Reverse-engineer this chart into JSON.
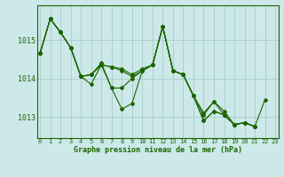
{
  "title": "Graphe pression niveau de la mer (hPa)",
  "bg_color": "#cce8e8",
  "grid_color": "#aacccc",
  "line_color": "#1a6600",
  "marker_color": "#1a6600",
  "x_ticks": [
    0,
    1,
    2,
    3,
    4,
    5,
    6,
    7,
    8,
    9,
    10,
    11,
    12,
    13,
    14,
    15,
    16,
    17,
    18,
    19,
    20,
    21,
    22,
    23
  ],
  "y_ticks": [
    1013,
    1014,
    1015
  ],
  "ylim": [
    1012.45,
    1015.9
  ],
  "xlim": [
    -0.3,
    23.3
  ],
  "series": [
    {
      "x": [
        0,
        1,
        2,
        3,
        4,
        5,
        6,
        7,
        8,
        9,
        10,
        11,
        12,
        13,
        14,
        15,
        16,
        17,
        18,
        19,
        20,
        21,
        22
      ],
      "y": [
        1014.65,
        1015.55,
        1015.2,
        1014.8,
        1014.05,
        1013.85,
        1014.35,
        1013.75,
        1013.2,
        1013.35,
        1014.2,
        1014.35,
        1015.35,
        1014.2,
        1014.1,
        1013.55,
        1012.9,
        1013.15,
        1013.05,
        1012.8,
        1012.85,
        1012.75,
        1013.45
      ]
    },
    {
      "x": [
        0,
        1,
        2,
        3,
        4,
        5,
        6,
        7,
        8,
        9,
        10,
        11,
        12,
        13,
        14,
        15,
        16,
        17,
        18,
        19,
        20,
        21
      ],
      "y": [
        1014.65,
        1015.55,
        1015.2,
        1014.8,
        1014.05,
        1014.1,
        1014.4,
        1013.75,
        1013.75,
        1014.0,
        1014.2,
        1014.35,
        1015.35,
        1014.2,
        1014.1,
        1013.55,
        1012.9,
        1013.15,
        1013.05,
        1012.8,
        1012.85,
        1012.75
      ]
    },
    {
      "x": [
        0,
        1,
        2,
        3,
        4,
        5,
        6,
        7,
        8,
        9,
        10,
        11,
        12,
        13,
        14,
        15,
        16,
        17,
        18,
        19,
        20,
        21
      ],
      "y": [
        1014.65,
        1015.55,
        1015.2,
        1014.8,
        1014.05,
        1014.1,
        1014.35,
        1014.3,
        1014.2,
        1014.05,
        1014.2,
        1014.35,
        1015.35,
        1014.2,
        1014.1,
        1013.55,
        1013.05,
        1013.4,
        1013.05,
        1012.8,
        1012.85,
        1012.75
      ]
    },
    {
      "x": [
        0,
        1,
        2,
        3,
        4,
        5,
        6,
        7,
        8,
        9,
        10,
        11,
        12,
        13,
        14,
        15,
        16,
        17,
        18,
        19,
        20,
        21
      ],
      "y": [
        1014.65,
        1015.55,
        1015.2,
        1014.8,
        1014.05,
        1014.1,
        1014.35,
        1014.3,
        1014.25,
        1014.1,
        1014.25,
        1014.35,
        1015.35,
        1014.2,
        1014.1,
        1013.55,
        1013.1,
        1013.4,
        1013.15,
        1012.8,
        1012.85,
        1012.75
      ]
    }
  ],
  "tick_fontsize": 5,
  "xlabel_fontsize": 6,
  "linewidth": 0.8,
  "markersize": 2.0
}
